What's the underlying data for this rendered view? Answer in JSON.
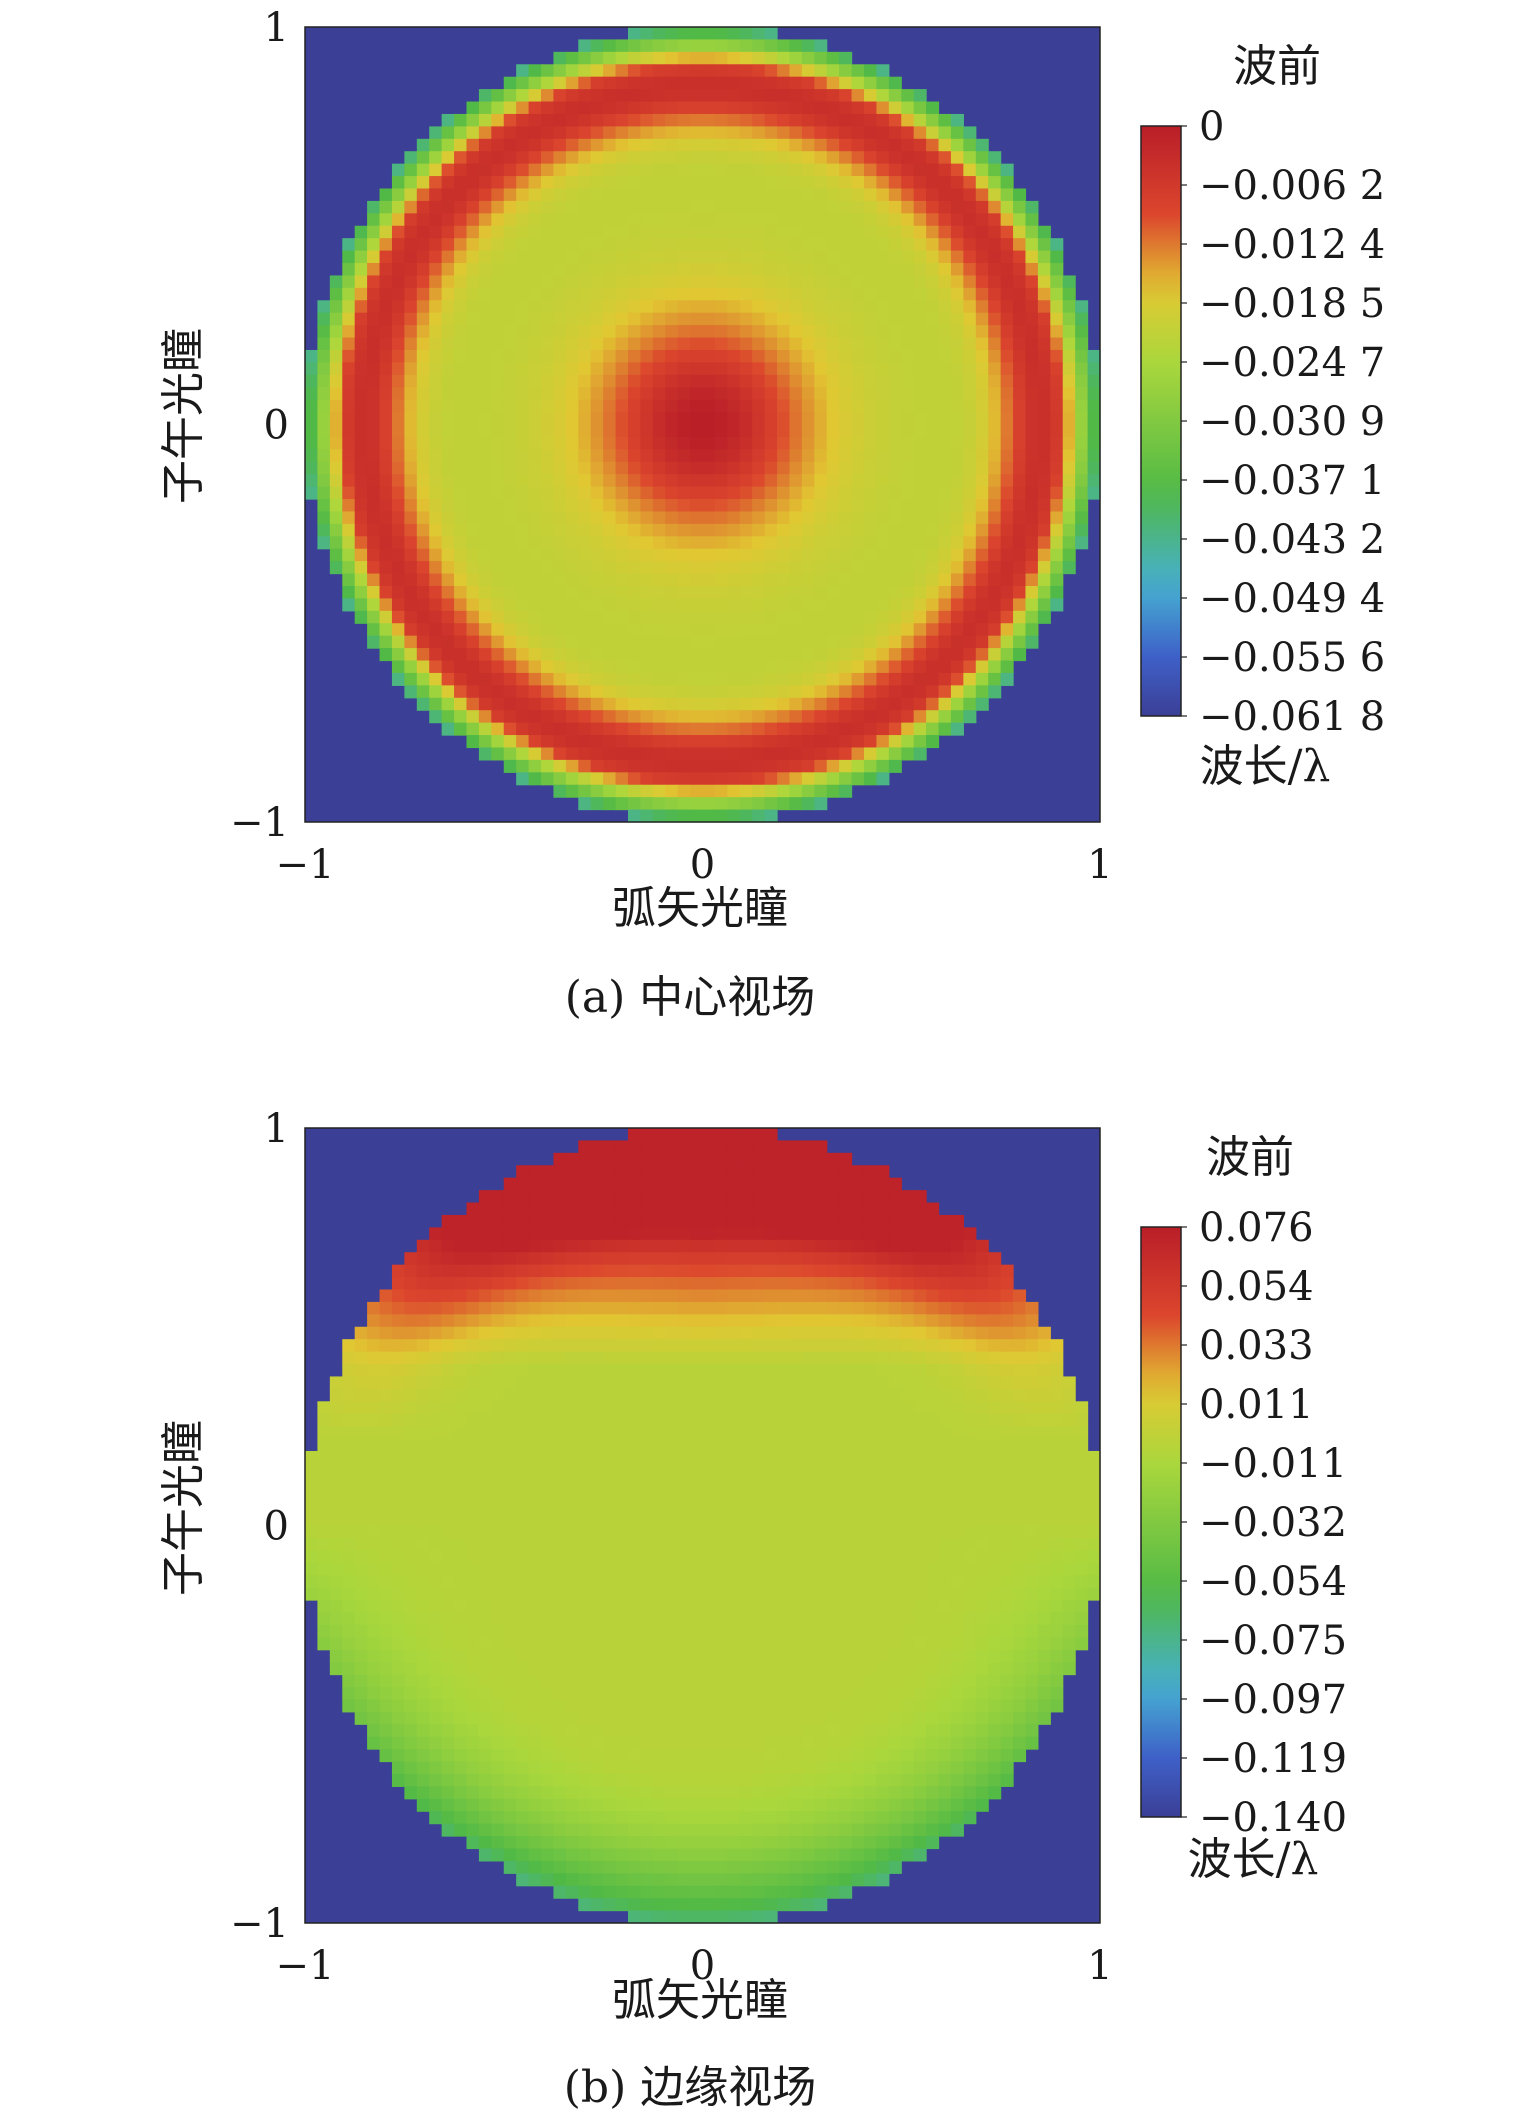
{
  "chart_data": [
    {
      "type": "heatmap",
      "subtitle": "(a) 中心视场",
      "xlabel": "弧矢光瞳",
      "ylabel": "子午光瞳",
      "xlim": [
        -1,
        1
      ],
      "ylim": [
        -1,
        1
      ],
      "x_ticks": [
        "−1",
        "0",
        "1"
      ],
      "y_ticks": [
        "1",
        "0",
        "−1"
      ],
      "colorbar": {
        "title": "波前",
        "unit_label": "波长/λ",
        "max": 0,
        "min": -0.0618,
        "tick_labels": [
          "0",
          "−0.006 2",
          "−0.012 4",
          "−0.018 5",
          "−0.024 7",
          "−0.030 9",
          "−0.037 1",
          "−0.043 2",
          "−0.049 4",
          "−0.055 6",
          "−0.061 8"
        ]
      },
      "grid": false,
      "pupil": "circular, radius 1",
      "background_color": "#3b3f96",
      "field_description": {
        "center_peak": 0,
        "center_peak_radius": 0.25,
        "intermediate_zone_value": -0.022,
        "ring_radius": 0.85,
        "ring_value": -0.004,
        "edge_value": -0.03
      }
    },
    {
      "type": "heatmap",
      "subtitle": "(b) 边缘视场",
      "xlabel": "弧矢光瞳",
      "ylabel": "子午光瞳",
      "xlim": [
        -1,
        1
      ],
      "ylim": [
        -1,
        1
      ],
      "x_ticks": [
        "−1",
        "0",
        "1"
      ],
      "y_ticks": [
        "1",
        "0",
        "−1"
      ],
      "colorbar": {
        "title": "波前",
        "unit_label": "波长/λ",
        "max": 0.076,
        "min": -0.14,
        "tick_labels": [
          "0.076",
          "0.054",
          "0.033",
          "0.011",
          "−0.011",
          "−0.032",
          "−0.054",
          "−0.075",
          "−0.097",
          "−0.119",
          "−0.140"
        ]
      },
      "grid": false,
      "pupil": "circular, radius 1",
      "background_color": "#3b3f96",
      "field_description": {
        "top_band_peak": 0.072,
        "top_band_y_range": [
          0.55,
          1.0
        ],
        "central_value": -0.004,
        "bottom_edge_value": -0.07
      }
    }
  ]
}
